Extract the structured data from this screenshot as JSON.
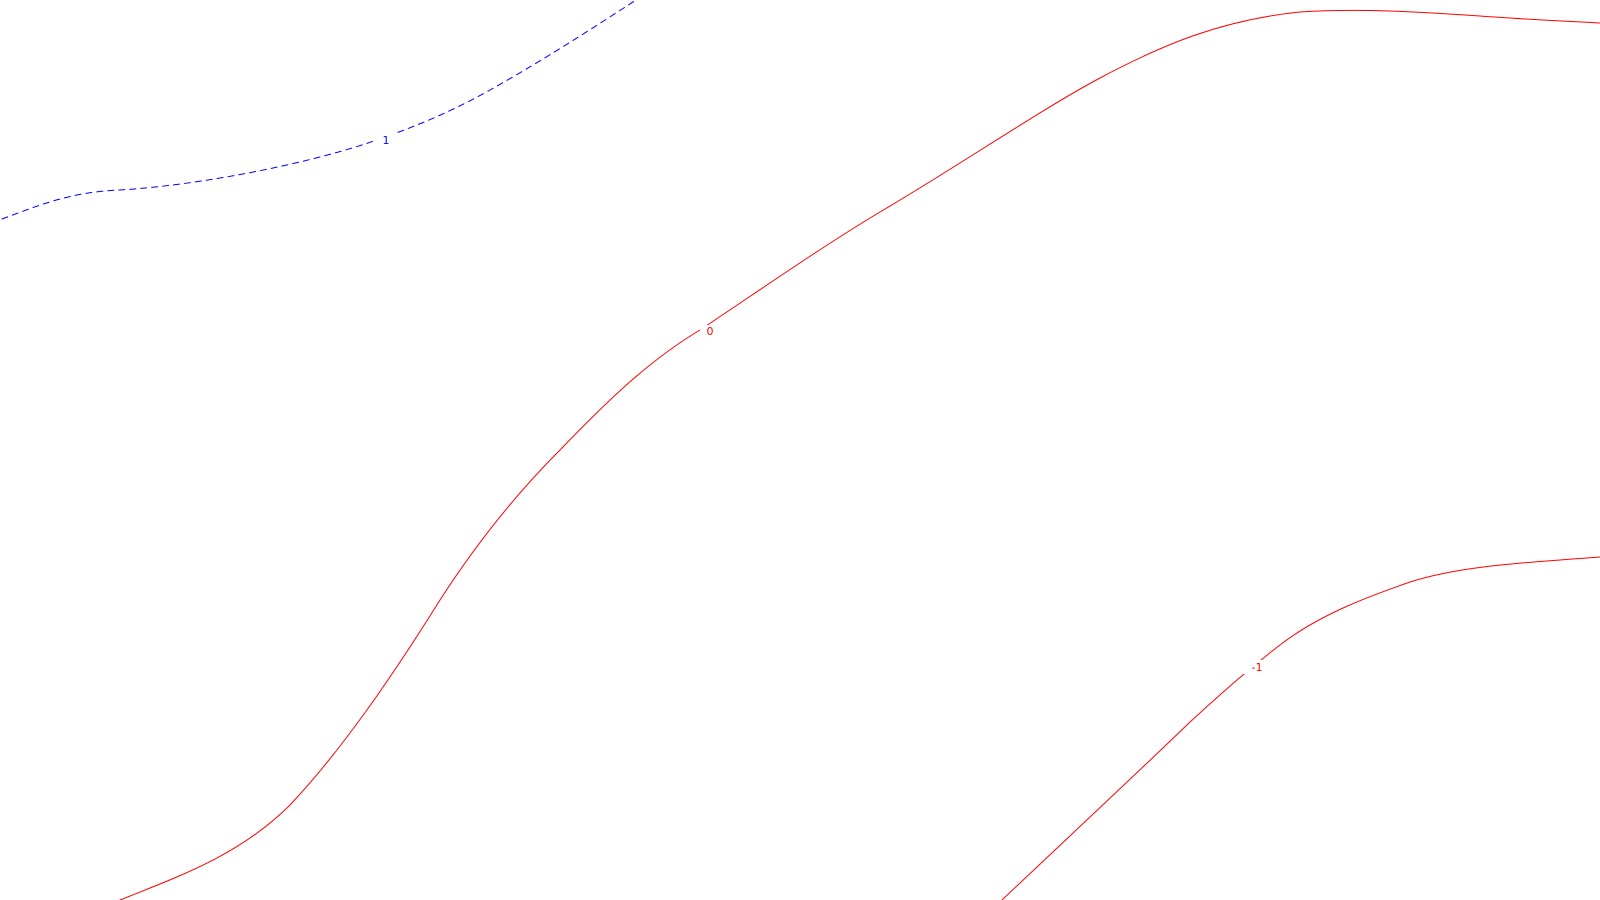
{
  "contours": [
    {
      "id": "contour-1-dashed",
      "label": "1",
      "color": "#0000ff",
      "style": "dashed"
    },
    {
      "id": "contour-0",
      "label": "0",
      "color": "#ff0000",
      "style": "solid"
    },
    {
      "id": "contour-minus1",
      "label": "-1",
      "color": "#ff0000",
      "style": "solid"
    }
  ]
}
